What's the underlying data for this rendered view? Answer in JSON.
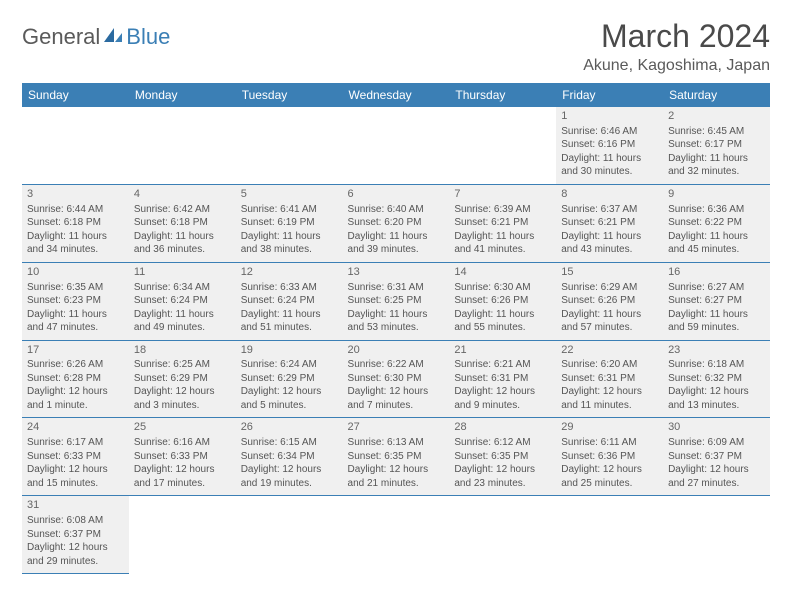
{
  "logo": {
    "general": "General",
    "blue": "Blue"
  },
  "title": "March 2024",
  "location": "Akune, Kagoshima, Japan",
  "headers": [
    "Sunday",
    "Monday",
    "Tuesday",
    "Wednesday",
    "Thursday",
    "Friday",
    "Saturday"
  ],
  "colors": {
    "header_bg": "#3b7fb5",
    "header_text": "#ffffff",
    "cell_bg": "#f0f0f0",
    "border": "#3b7fb5",
    "text": "#555555",
    "title_text": "#4a4a4a"
  },
  "weeks": [
    [
      null,
      null,
      null,
      null,
      null,
      {
        "n": "1",
        "sr": "Sunrise: 6:46 AM",
        "ss": "Sunset: 6:16 PM",
        "d1": "Daylight: 11 hours",
        "d2": "and 30 minutes."
      },
      {
        "n": "2",
        "sr": "Sunrise: 6:45 AM",
        "ss": "Sunset: 6:17 PM",
        "d1": "Daylight: 11 hours",
        "d2": "and 32 minutes."
      }
    ],
    [
      {
        "n": "3",
        "sr": "Sunrise: 6:44 AM",
        "ss": "Sunset: 6:18 PM",
        "d1": "Daylight: 11 hours",
        "d2": "and 34 minutes."
      },
      {
        "n": "4",
        "sr": "Sunrise: 6:42 AM",
        "ss": "Sunset: 6:18 PM",
        "d1": "Daylight: 11 hours",
        "d2": "and 36 minutes."
      },
      {
        "n": "5",
        "sr": "Sunrise: 6:41 AM",
        "ss": "Sunset: 6:19 PM",
        "d1": "Daylight: 11 hours",
        "d2": "and 38 minutes."
      },
      {
        "n": "6",
        "sr": "Sunrise: 6:40 AM",
        "ss": "Sunset: 6:20 PM",
        "d1": "Daylight: 11 hours",
        "d2": "and 39 minutes."
      },
      {
        "n": "7",
        "sr": "Sunrise: 6:39 AM",
        "ss": "Sunset: 6:21 PM",
        "d1": "Daylight: 11 hours",
        "d2": "and 41 minutes."
      },
      {
        "n": "8",
        "sr": "Sunrise: 6:37 AM",
        "ss": "Sunset: 6:21 PM",
        "d1": "Daylight: 11 hours",
        "d2": "and 43 minutes."
      },
      {
        "n": "9",
        "sr": "Sunrise: 6:36 AM",
        "ss": "Sunset: 6:22 PM",
        "d1": "Daylight: 11 hours",
        "d2": "and 45 minutes."
      }
    ],
    [
      {
        "n": "10",
        "sr": "Sunrise: 6:35 AM",
        "ss": "Sunset: 6:23 PM",
        "d1": "Daylight: 11 hours",
        "d2": "and 47 minutes."
      },
      {
        "n": "11",
        "sr": "Sunrise: 6:34 AM",
        "ss": "Sunset: 6:24 PM",
        "d1": "Daylight: 11 hours",
        "d2": "and 49 minutes."
      },
      {
        "n": "12",
        "sr": "Sunrise: 6:33 AM",
        "ss": "Sunset: 6:24 PM",
        "d1": "Daylight: 11 hours",
        "d2": "and 51 minutes."
      },
      {
        "n": "13",
        "sr": "Sunrise: 6:31 AM",
        "ss": "Sunset: 6:25 PM",
        "d1": "Daylight: 11 hours",
        "d2": "and 53 minutes."
      },
      {
        "n": "14",
        "sr": "Sunrise: 6:30 AM",
        "ss": "Sunset: 6:26 PM",
        "d1": "Daylight: 11 hours",
        "d2": "and 55 minutes."
      },
      {
        "n": "15",
        "sr": "Sunrise: 6:29 AM",
        "ss": "Sunset: 6:26 PM",
        "d1": "Daylight: 11 hours",
        "d2": "and 57 minutes."
      },
      {
        "n": "16",
        "sr": "Sunrise: 6:27 AM",
        "ss": "Sunset: 6:27 PM",
        "d1": "Daylight: 11 hours",
        "d2": "and 59 minutes."
      }
    ],
    [
      {
        "n": "17",
        "sr": "Sunrise: 6:26 AM",
        "ss": "Sunset: 6:28 PM",
        "d1": "Daylight: 12 hours",
        "d2": "and 1 minute."
      },
      {
        "n": "18",
        "sr": "Sunrise: 6:25 AM",
        "ss": "Sunset: 6:29 PM",
        "d1": "Daylight: 12 hours",
        "d2": "and 3 minutes."
      },
      {
        "n": "19",
        "sr": "Sunrise: 6:24 AM",
        "ss": "Sunset: 6:29 PM",
        "d1": "Daylight: 12 hours",
        "d2": "and 5 minutes."
      },
      {
        "n": "20",
        "sr": "Sunrise: 6:22 AM",
        "ss": "Sunset: 6:30 PM",
        "d1": "Daylight: 12 hours",
        "d2": "and 7 minutes."
      },
      {
        "n": "21",
        "sr": "Sunrise: 6:21 AM",
        "ss": "Sunset: 6:31 PM",
        "d1": "Daylight: 12 hours",
        "d2": "and 9 minutes."
      },
      {
        "n": "22",
        "sr": "Sunrise: 6:20 AM",
        "ss": "Sunset: 6:31 PM",
        "d1": "Daylight: 12 hours",
        "d2": "and 11 minutes."
      },
      {
        "n": "23",
        "sr": "Sunrise: 6:18 AM",
        "ss": "Sunset: 6:32 PM",
        "d1": "Daylight: 12 hours",
        "d2": "and 13 minutes."
      }
    ],
    [
      {
        "n": "24",
        "sr": "Sunrise: 6:17 AM",
        "ss": "Sunset: 6:33 PM",
        "d1": "Daylight: 12 hours",
        "d2": "and 15 minutes."
      },
      {
        "n": "25",
        "sr": "Sunrise: 6:16 AM",
        "ss": "Sunset: 6:33 PM",
        "d1": "Daylight: 12 hours",
        "d2": "and 17 minutes."
      },
      {
        "n": "26",
        "sr": "Sunrise: 6:15 AM",
        "ss": "Sunset: 6:34 PM",
        "d1": "Daylight: 12 hours",
        "d2": "and 19 minutes."
      },
      {
        "n": "27",
        "sr": "Sunrise: 6:13 AM",
        "ss": "Sunset: 6:35 PM",
        "d1": "Daylight: 12 hours",
        "d2": "and 21 minutes."
      },
      {
        "n": "28",
        "sr": "Sunrise: 6:12 AM",
        "ss": "Sunset: 6:35 PM",
        "d1": "Daylight: 12 hours",
        "d2": "and 23 minutes."
      },
      {
        "n": "29",
        "sr": "Sunrise: 6:11 AM",
        "ss": "Sunset: 6:36 PM",
        "d1": "Daylight: 12 hours",
        "d2": "and 25 minutes."
      },
      {
        "n": "30",
        "sr": "Sunrise: 6:09 AM",
        "ss": "Sunset: 6:37 PM",
        "d1": "Daylight: 12 hours",
        "d2": "and 27 minutes."
      }
    ],
    [
      {
        "n": "31",
        "sr": "Sunrise: 6:08 AM",
        "ss": "Sunset: 6:37 PM",
        "d1": "Daylight: 12 hours",
        "d2": "and 29 minutes."
      },
      null,
      null,
      null,
      null,
      null,
      null
    ]
  ]
}
